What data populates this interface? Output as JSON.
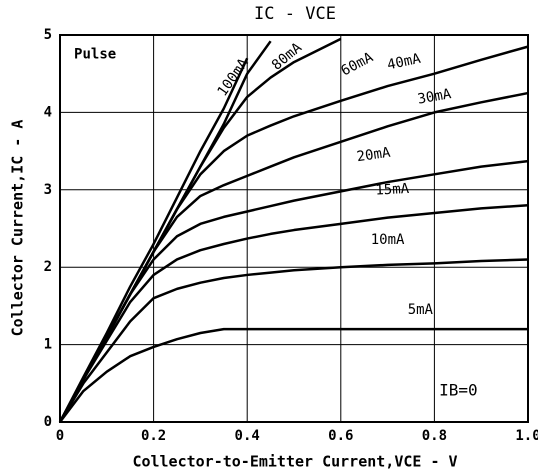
{
  "chart_data": {
    "type": "line",
    "title": "IC - VCE",
    "x_label": "Collector-to-Emitter Current,VCE - V",
    "y_label": "Collector Current,IC - A",
    "annotations": [
      "Pulse",
      "IB=0"
    ],
    "x": [
      0,
      0.05,
      0.1,
      0.15,
      0.2,
      0.25,
      0.3,
      0.35,
      0.4,
      0.45,
      0.5,
      0.6,
      0.7,
      0.8,
      0.9,
      1.0
    ],
    "series": [
      {
        "name": "100mA",
        "color": "#000000",
        "values": [
          0,
          0.58,
          1.15,
          1.75,
          2.3,
          2.9,
          3.5,
          4.05,
          4.7,
          null,
          null,
          null,
          null,
          null,
          null,
          null
        ]
      },
      {
        "name": "80mA",
        "color": "#000000",
        "values": [
          0,
          0.55,
          1.1,
          1.65,
          2.2,
          2.75,
          3.3,
          3.85,
          4.5,
          4.92,
          null,
          null,
          null,
          null,
          null,
          null
        ]
      },
      {
        "name": "60mA",
        "color": "#000000",
        "values": [
          0,
          0.55,
          1.1,
          1.65,
          2.2,
          2.75,
          3.3,
          3.8,
          4.2,
          4.45,
          4.65,
          4.95,
          null,
          null,
          null,
          null
        ]
      },
      {
        "name": "40mA",
        "color": "#000000",
        "values": [
          0,
          0.55,
          1.1,
          1.65,
          2.2,
          2.75,
          3.2,
          3.5,
          3.7,
          3.83,
          3.95,
          4.15,
          4.34,
          4.5,
          4.68,
          4.85
        ]
      },
      {
        "name": "30mA",
        "color": "#000000",
        "values": [
          0,
          0.55,
          1.1,
          1.65,
          2.2,
          2.65,
          2.92,
          3.06,
          3.18,
          3.3,
          3.42,
          3.62,
          3.82,
          4.0,
          4.13,
          4.25
        ]
      },
      {
        "name": "20mA",
        "color": "#000000",
        "values": [
          0,
          0.55,
          1.1,
          1.65,
          2.1,
          2.4,
          2.56,
          2.65,
          2.72,
          2.79,
          2.86,
          2.98,
          3.1,
          3.2,
          3.3,
          3.37
        ]
      },
      {
        "name": "15mA",
        "color": "#000000",
        "values": [
          0,
          0.55,
          1.05,
          1.55,
          1.9,
          2.1,
          2.22,
          2.3,
          2.37,
          2.43,
          2.48,
          2.56,
          2.64,
          2.7,
          2.76,
          2.8
        ]
      },
      {
        "name": "10mA",
        "color": "#000000",
        "values": [
          0,
          0.5,
          0.9,
          1.3,
          1.6,
          1.72,
          1.8,
          1.86,
          1.9,
          1.93,
          1.96,
          2.0,
          2.03,
          2.05,
          2.08,
          2.1
        ]
      },
      {
        "name": "5mA",
        "color": "#000000",
        "values": [
          0,
          0.4,
          0.65,
          0.85,
          0.97,
          1.07,
          1.15,
          1.2,
          1.2,
          1.2,
          1.2,
          1.2,
          1.2,
          1.2,
          1.2,
          1.2
        ]
      }
    ],
    "xlim": [
      0,
      1.0
    ],
    "xticks": [
      0,
      0.2,
      0.4,
      0.6,
      0.8,
      {
        "value": 1.0,
        "label": "1.0"
      }
    ],
    "ylim": [
      0,
      5
    ],
    "yticks": [
      0,
      1,
      2,
      3,
      4,
      5
    ],
    "grid": true
  }
}
